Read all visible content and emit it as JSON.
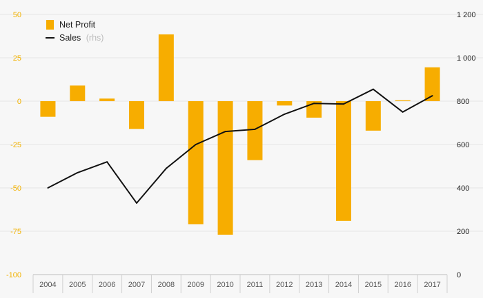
{
  "chart_data": {
    "type": "bar",
    "categories": [
      "2004",
      "2005",
      "2006",
      "2007",
      "2008",
      "2009",
      "2010",
      "2011",
      "2012",
      "2013",
      "2014",
      "2015",
      "2016",
      "2017"
    ],
    "series": [
      {
        "name": "Net Profit",
        "type": "bar",
        "axis": "left",
        "color": "#f7ad00",
        "values": [
          -9,
          9,
          1.5,
          -16,
          38.5,
          -71,
          -77,
          -34,
          -2.5,
          -9.5,
          -69,
          -17,
          0.5,
          19.5
        ]
      },
      {
        "name": "Sales",
        "name_note": "(rhs)",
        "type": "line",
        "axis": "right",
        "color": "#111111",
        "values": [
          400,
          470,
          520,
          330,
          490,
          600,
          660,
          670,
          740,
          790,
          787,
          855,
          750,
          825
        ]
      }
    ],
    "y_left": {
      "ylim": [
        -100,
        50
      ],
      "ticks": [
        50,
        25,
        0,
        -25,
        -50,
        -75,
        -100
      ],
      "tick_labels": [
        "50",
        "25",
        "0",
        "-25",
        "-50",
        "-75",
        "-100"
      ],
      "color": "#f2b200"
    },
    "y_right": {
      "ylim": [
        0,
        1200
      ],
      "ticks": [
        1200,
        1000,
        800,
        600,
        400,
        200,
        0
      ],
      "tick_labels": [
        "1 200",
        "1 000",
        "800",
        "600",
        "400",
        "200",
        "0"
      ]
    },
    "title": "",
    "xlabel": "",
    "ylabel": "",
    "grid": true,
    "legend_position": "top-left"
  }
}
